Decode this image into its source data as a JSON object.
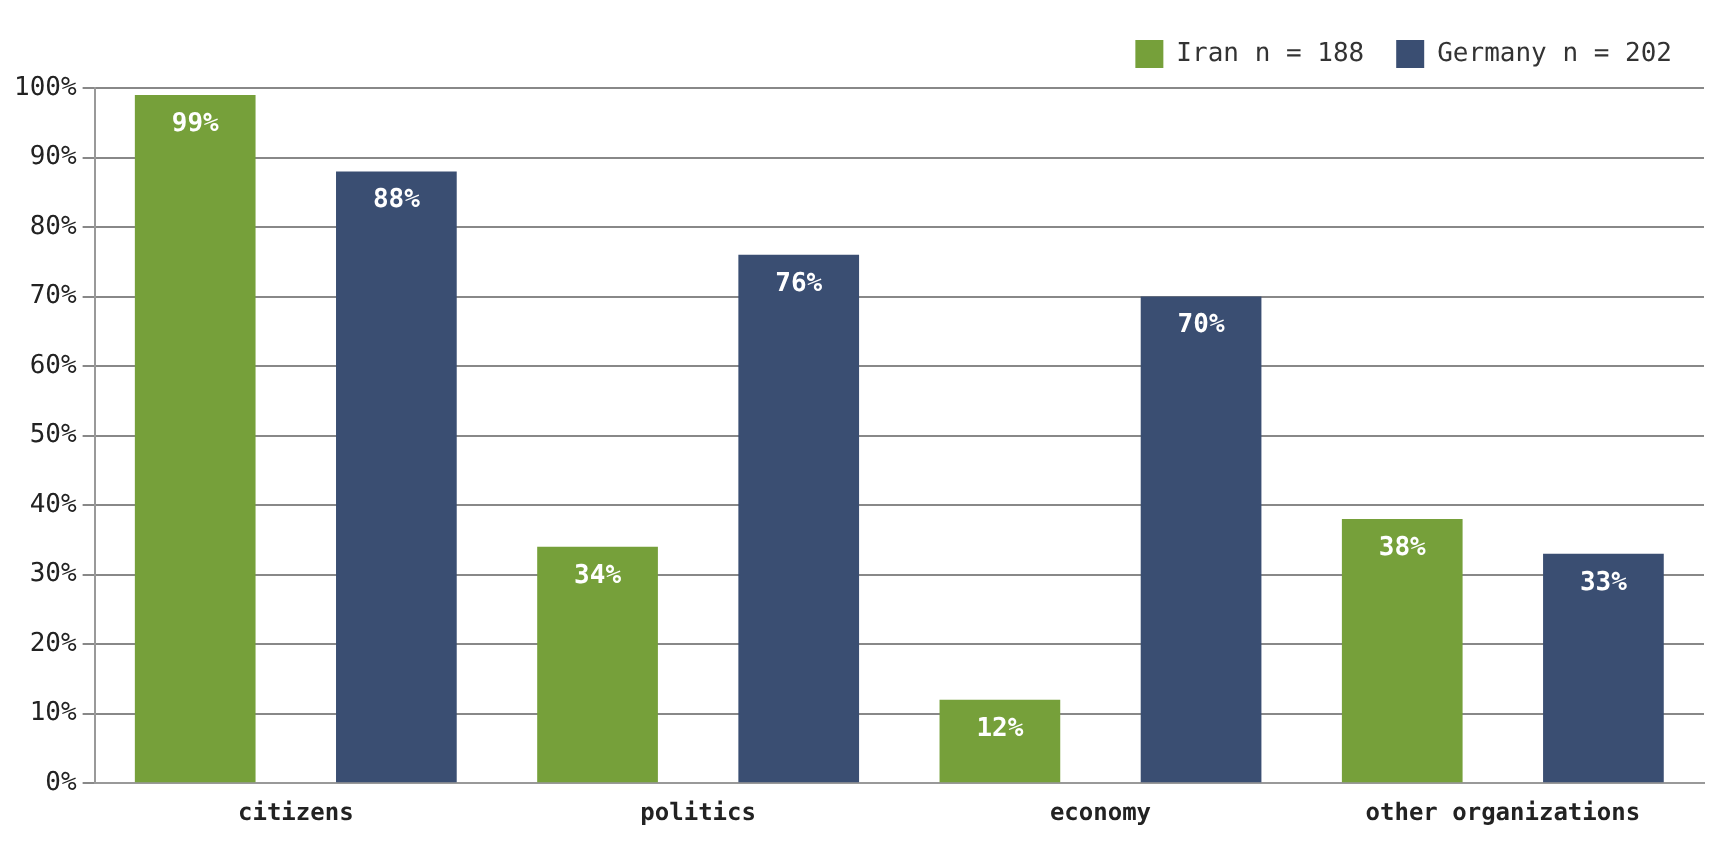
{
  "chart_data": {
    "type": "bar",
    "categories": [
      "citizens",
      "politics",
      "economy",
      "other organizations"
    ],
    "series": [
      {
        "name": "Iran n = 188",
        "color": "#76a03a",
        "values": [
          99,
          34,
          12,
          38
        ],
        "value_labels": [
          "99%",
          "34%",
          "12%",
          "38%"
        ]
      },
      {
        "name": "Germany n = 202",
        "color": "#3a4e72",
        "values": [
          88,
          76,
          70,
          33
        ],
        "value_labels": [
          "88%",
          "76%",
          "70%",
          "33%"
        ]
      }
    ],
    "ylim": [
      0,
      100
    ],
    "yticks": [
      {
        "value": 0,
        "label": "0%"
      },
      {
        "value": 10,
        "label": "10%"
      },
      {
        "value": 20,
        "label": "20%"
      },
      {
        "value": 30,
        "label": "30%"
      },
      {
        "value": 40,
        "label": "40%"
      },
      {
        "value": 50,
        "label": "50%"
      },
      {
        "value": 60,
        "label": "60%"
      },
      {
        "value": 70,
        "label": "70%"
      },
      {
        "value": 80,
        "label": "80%"
      },
      {
        "value": 90,
        "label": "90%"
      },
      {
        "value": 100,
        "label": "100%"
      }
    ],
    "grid": "y",
    "legend": "top right"
  }
}
